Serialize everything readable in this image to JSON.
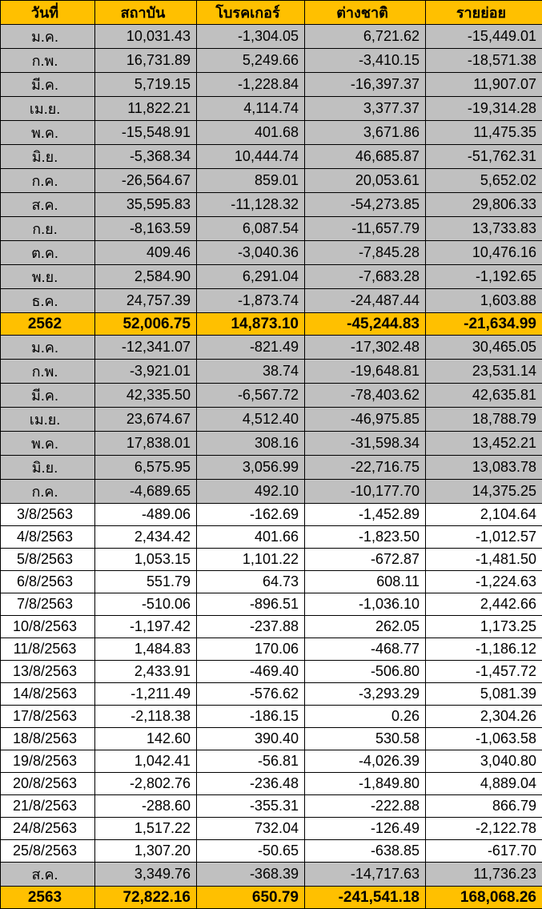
{
  "colors": {
    "header_bg": "#FFC000",
    "month_row_bg": "#C0C0C0",
    "day_row_bg": "#FFFFFF",
    "year_row_bg": "#FFC000",
    "negative": "#FF0000",
    "positive": "#000000",
    "border": "#000000"
  },
  "chart_data": {
    "type": "table",
    "columns": [
      "วันที่",
      "สถาบัน",
      "โบรคเกอร์",
      "ต่างชาติ",
      "รายย่อย"
    ],
    "rows": [
      {
        "label": "ม.ค.",
        "row_type": "month",
        "values": [
          "10,031.43",
          "-1,304.05",
          "6,721.62",
          "-15,449.01"
        ]
      },
      {
        "label": "ก.พ.",
        "row_type": "month",
        "values": [
          "16,731.89",
          "5,249.66",
          "-3,410.15",
          "-18,571.38"
        ]
      },
      {
        "label": "มี.ค.",
        "row_type": "month",
        "values": [
          "5,719.15",
          "-1,228.84",
          "-16,397.37",
          "11,907.07"
        ]
      },
      {
        "label": "เม.ย.",
        "row_type": "month",
        "values": [
          "11,822.21",
          "4,114.74",
          "3,377.37",
          "-19,314.28"
        ]
      },
      {
        "label": "พ.ค.",
        "row_type": "month",
        "values": [
          "-15,548.91",
          "401.68",
          "3,671.86",
          "11,475.35"
        ]
      },
      {
        "label": "มิ.ย.",
        "row_type": "month",
        "values": [
          "-5,368.34",
          "10,444.74",
          "46,685.87",
          "-51,762.31"
        ]
      },
      {
        "label": "ก.ค.",
        "row_type": "month",
        "values": [
          "-26,564.67",
          "859.01",
          "20,053.61",
          "5,652.02"
        ]
      },
      {
        "label": "ส.ค.",
        "row_type": "month",
        "values": [
          "35,595.83",
          "-11,128.32",
          "-54,273.85",
          "29,806.33"
        ]
      },
      {
        "label": "ก.ย.",
        "row_type": "month",
        "values": [
          "-8,163.59",
          "6,087.54",
          "-11,657.79",
          "13,733.83"
        ]
      },
      {
        "label": "ต.ค.",
        "row_type": "month",
        "values": [
          "409.46",
          "-3,040.36",
          "-7,845.28",
          "10,476.16"
        ]
      },
      {
        "label": "พ.ย.",
        "row_type": "month",
        "values": [
          "2,584.90",
          "6,291.04",
          "-7,683.28",
          "-1,192.65"
        ]
      },
      {
        "label": "ธ.ค.",
        "row_type": "month",
        "values": [
          "24,757.39",
          "-1,873.74",
          "-24,487.44",
          "1,603.88"
        ]
      },
      {
        "label": "2562",
        "row_type": "year",
        "values": [
          "52,006.75",
          "14,873.10",
          "-45,244.83",
          "-21,634.99"
        ]
      },
      {
        "label": "ม.ค.",
        "row_type": "month",
        "values": [
          "-12,341.07",
          "-821.49",
          "-17,302.48",
          "30,465.05"
        ]
      },
      {
        "label": "ก.พ.",
        "row_type": "month",
        "values": [
          "-3,921.01",
          "38.74",
          "-19,648.81",
          "23,531.14"
        ]
      },
      {
        "label": "มี.ค.",
        "row_type": "month",
        "values": [
          "42,335.50",
          "-6,567.72",
          "-78,403.62",
          "42,635.81"
        ]
      },
      {
        "label": "เม.ย.",
        "row_type": "month",
        "values": [
          "23,674.67",
          "4,512.40",
          "-46,975.85",
          "18,788.79"
        ]
      },
      {
        "label": "พ.ค.",
        "row_type": "month",
        "values": [
          "17,838.01",
          "308.16",
          "-31,598.34",
          "13,452.21"
        ]
      },
      {
        "label": "มิ.ย.",
        "row_type": "month",
        "values": [
          "6,575.95",
          "3,056.99",
          "-22,716.75",
          "13,083.78"
        ]
      },
      {
        "label": "ก.ค.",
        "row_type": "month",
        "values": [
          "-4,689.65",
          "492.10",
          "-10,177.70",
          "14,375.25"
        ]
      },
      {
        "label": "3/8/2563",
        "row_type": "day",
        "values": [
          "-489.06",
          "-162.69",
          "-1,452.89",
          "2,104.64"
        ]
      },
      {
        "label": "4/8/2563",
        "row_type": "day",
        "values": [
          "2,434.42",
          "401.66",
          "-1,823.50",
          "-1,012.57"
        ]
      },
      {
        "label": "5/8/2563",
        "row_type": "day",
        "values": [
          "1,053.15",
          "1,101.22",
          "-672.87",
          "-1,481.50"
        ]
      },
      {
        "label": "6/8/2563",
        "row_type": "day",
        "values": [
          "551.79",
          "64.73",
          "608.11",
          "-1,224.63"
        ]
      },
      {
        "label": "7/8/2563",
        "row_type": "day",
        "values": [
          "-510.06",
          "-896.51",
          "-1,036.10",
          "2,442.66"
        ]
      },
      {
        "label": "10/8/2563",
        "row_type": "day",
        "values": [
          "-1,197.42",
          "-237.88",
          "262.05",
          "1,173.25"
        ]
      },
      {
        "label": "11/8/2563",
        "row_type": "day",
        "values": [
          "1,484.83",
          "170.06",
          "-468.77",
          "-1,186.12"
        ]
      },
      {
        "label": "13/8/2563",
        "row_type": "day",
        "values": [
          "2,433.91",
          "-469.40",
          "-506.80",
          "-1,457.72"
        ]
      },
      {
        "label": "14/8/2563",
        "row_type": "day",
        "values": [
          "-1,211.49",
          "-576.62",
          "-3,293.29",
          "5,081.39"
        ]
      },
      {
        "label": "17/8/2563",
        "row_type": "day",
        "values": [
          "-2,118.38",
          "-186.15",
          "0.26",
          "2,304.26"
        ]
      },
      {
        "label": "18/8/2563",
        "row_type": "day",
        "values": [
          "142.60",
          "390.40",
          "530.58",
          "-1,063.58"
        ]
      },
      {
        "label": "19/8/2563",
        "row_type": "day",
        "values": [
          "1,042.41",
          "-56.81",
          "-4,026.39",
          "3,040.80"
        ]
      },
      {
        "label": "20/8/2563",
        "row_type": "day",
        "values": [
          "-2,802.76",
          "-236.48",
          "-1,849.80",
          "4,889.04"
        ]
      },
      {
        "label": "21/8/2563",
        "row_type": "day",
        "values": [
          "-288.60",
          "-355.31",
          "-222.88",
          "866.79"
        ]
      },
      {
        "label": "24/8/2563",
        "row_type": "day",
        "values": [
          "1,517.22",
          "732.04",
          "-126.49",
          "-2,122.78"
        ]
      },
      {
        "label": "25/8/2563",
        "row_type": "day",
        "values": [
          "1,307.20",
          "-50.65",
          "-638.85",
          "-617.70"
        ]
      },
      {
        "label": "ส.ค.",
        "row_type": "month",
        "values": [
          "3,349.76",
          "-368.39",
          "-14,717.63",
          "11,736.23"
        ]
      },
      {
        "label": "2563",
        "row_type": "year",
        "values": [
          "72,822.16",
          "650.79",
          "-241,541.18",
          "168,068.26"
        ]
      }
    ]
  }
}
